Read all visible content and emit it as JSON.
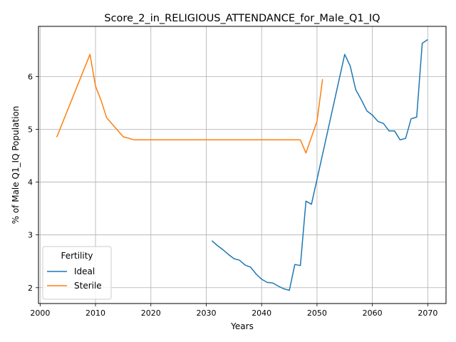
{
  "chart_data": {
    "type": "line",
    "title": "Score_2_in_RELIGIOUS_ATTENDANCE_for_Male_Q1_IQ",
    "xlabel": "Years",
    "ylabel": "% of Male Q1_IQ Population",
    "xlim": [
      1999.7,
      2073.3
    ],
    "ylim": [
      1.7,
      6.95
    ],
    "x_ticks": [
      2000,
      2010,
      2020,
      2030,
      2040,
      2050,
      2060,
      2070
    ],
    "y_ticks": [
      2,
      3,
      4,
      5,
      6
    ],
    "grid": true,
    "legend": {
      "title": "Fertility",
      "placement": "lower-left"
    },
    "series": [
      {
        "name": "Ideal",
        "color": "#1f77b4",
        "x": [
          2031,
          2032,
          2033,
          2034,
          2035,
          2036,
          2037,
          2038,
          2039,
          2040,
          2041,
          2042,
          2043,
          2044,
          2045,
          2046,
          2047,
          2048,
          2049,
          2050,
          2055,
          2056,
          2057,
          2058,
          2059,
          2060,
          2061,
          2062,
          2063,
          2064,
          2065,
          2066,
          2067,
          2068,
          2069,
          2070
        ],
        "values": [
          2.89,
          2.8,
          2.72,
          2.63,
          2.55,
          2.52,
          2.43,
          2.39,
          2.26,
          2.16,
          2.1,
          2.09,
          2.03,
          1.98,
          1.95,
          2.44,
          2.42,
          3.64,
          3.58,
          4.05,
          6.42,
          6.2,
          5.75,
          5.56,
          5.35,
          5.27,
          5.15,
          5.11,
          4.97,
          4.97,
          4.8,
          4.83,
          5.2,
          5.23,
          6.63,
          6.7
        ]
      },
      {
        "name": "Sterile",
        "color": "#ff7f0e",
        "x": [
          2003,
          2009,
          2010,
          2011,
          2012,
          2013,
          2015,
          2017,
          2020,
          2025,
          2030,
          2035,
          2040,
          2045,
          2047,
          2048,
          2049,
          2050,
          2051
        ],
        "values": [
          4.85,
          6.42,
          5.82,
          5.55,
          5.22,
          5.1,
          4.86,
          4.8,
          4.8,
          4.8,
          4.8,
          4.8,
          4.8,
          4.8,
          4.8,
          4.55,
          4.85,
          5.15,
          5.95
        ]
      }
    ]
  }
}
